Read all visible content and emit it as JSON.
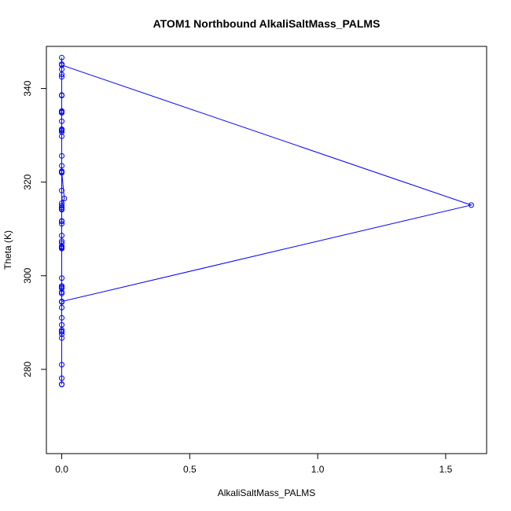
{
  "chart_data": {
    "type": "line",
    "title": "ATOM1 Northbound AlkaliSaltMass_PALMS",
    "xlabel": "AlkaliSaltMass_PALMS",
    "ylabel": "Theta (K)",
    "xlim": [
      -0.06,
      1.66
    ],
    "ylim": [
      262,
      349
    ],
    "x_ticks": [
      0,
      0.5,
      1,
      1.5
    ],
    "x_tick_labels": [
      "0.0",
      "0.5",
      "1.0",
      "1.5"
    ],
    "y_ticks": [
      280,
      300,
      320,
      340
    ],
    "y_tick_labels": [
      "280",
      "300",
      "320",
      "340"
    ],
    "grid": false,
    "legend": "none",
    "series_color": "#0000ff",
    "series": [
      {
        "x": [
          0.0,
          0.0,
          0.0,
          0.0,
          0.0,
          0.0,
          0.0,
          0.0,
          0.0,
          0.0,
          0.0,
          0.0,
          0.0,
          0.0,
          0.0,
          0.0,
          0.0,
          0.0,
          0.0,
          0.0,
          0.0,
          0.0,
          0.0,
          0.0,
          0.0,
          0.0,
          0.0,
          0.0,
          0.0,
          0.0,
          0.0,
          0.0,
          0.0,
          0.0,
          0.0,
          0.0,
          0.0,
          0.0,
          0.0,
          0.0,
          0.0,
          0.0,
          0.01,
          0.0,
          0.0,
          0.0,
          0.0,
          0.0,
          0.0,
          0.0,
          0.0,
          0.0,
          0.0,
          0.0,
          0.0,
          0.0,
          0.0,
          0.0,
          0.0,
          0.0,
          0.0,
          1.6,
          0.0,
          0.0,
          0.0
        ],
        "y": [
          276.8,
          276.8,
          278.1,
          286.7,
          288.0,
          288.4,
          291.0,
          293.2,
          294.4,
          296.2,
          297.3,
          297.8,
          299.5,
          306.0,
          306.3,
          307.4,
          308.6,
          311.1,
          311.6,
          314.1,
          314.6,
          315.5,
          318.2,
          322.0,
          322.3,
          323.5,
          325.6,
          329.8,
          330.7,
          331.3,
          333.0,
          334.8,
          335.2,
          338.6,
          342.5,
          343.0,
          344.1,
          345.2,
          346.6,
          335.0,
          331.0,
          322.2,
          316.5,
          315.0,
          314.3,
          311.7,
          307.0,
          306.0,
          305.8,
          297.5,
          296.5,
          288.1,
          281.0,
          289.5,
          297.8,
          306.1,
          314.6,
          322.3,
          331.2,
          338.5,
          345.0,
          315.1,
          294.5,
          287.5,
          276.8
        ]
      }
    ]
  }
}
